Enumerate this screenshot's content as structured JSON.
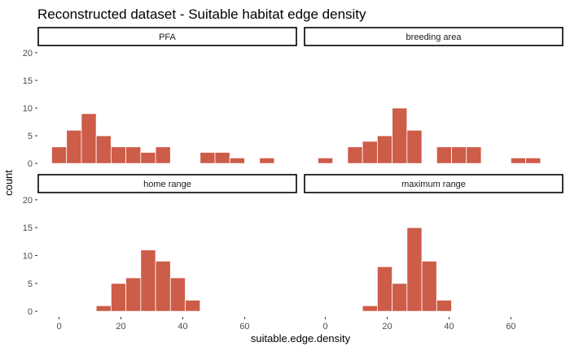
{
  "chart_data": {
    "type": "bar",
    "title": "Reconstructed dataset - Suitable habitat edge density",
    "xlabel": "suitable.edge.density",
    "ylabel": "count",
    "xlim": [
      -7,
      77
    ],
    "ylim": [
      -1,
      21
    ],
    "xticks": [
      0,
      20,
      40,
      60
    ],
    "yticks": [
      0,
      5,
      10,
      15,
      20
    ],
    "bin_width": 4.8,
    "bar_color": "#cd5c48",
    "panels": [
      {
        "label": "PFA",
        "bins": [
          {
            "x0": -2.4,
            "count": 3
          },
          {
            "x0": 2.4,
            "count": 6
          },
          {
            "x0": 7.2,
            "count": 9
          },
          {
            "x0": 12.0,
            "count": 5
          },
          {
            "x0": 16.8,
            "count": 3
          },
          {
            "x0": 21.6,
            "count": 3
          },
          {
            "x0": 26.4,
            "count": 2
          },
          {
            "x0": 31.2,
            "count": 3
          },
          {
            "x0": 45.6,
            "count": 2
          },
          {
            "x0": 50.4,
            "count": 2
          },
          {
            "x0": 55.2,
            "count": 1
          },
          {
            "x0": 64.8,
            "count": 1
          }
        ]
      },
      {
        "label": "breeding area",
        "bins": [
          {
            "x0": -2.4,
            "count": 1
          },
          {
            "x0": 7.2,
            "count": 3
          },
          {
            "x0": 12.0,
            "count": 4
          },
          {
            "x0": 16.8,
            "count": 5
          },
          {
            "x0": 21.6,
            "count": 10
          },
          {
            "x0": 26.4,
            "count": 6
          },
          {
            "x0": 36.0,
            "count": 3
          },
          {
            "x0": 40.8,
            "count": 3
          },
          {
            "x0": 45.6,
            "count": 3
          },
          {
            "x0": 60.0,
            "count": 1
          },
          {
            "x0": 64.8,
            "count": 1
          }
        ]
      },
      {
        "label": "home range",
        "bins": [
          {
            "x0": 12.0,
            "count": 1
          },
          {
            "x0": 16.8,
            "count": 5
          },
          {
            "x0": 21.6,
            "count": 6
          },
          {
            "x0": 26.4,
            "count": 11
          },
          {
            "x0": 31.2,
            "count": 9
          },
          {
            "x0": 36.0,
            "count": 6
          },
          {
            "x0": 40.8,
            "count": 2
          }
        ]
      },
      {
        "label": "maximum range",
        "bins": [
          {
            "x0": 12.0,
            "count": 1
          },
          {
            "x0": 16.8,
            "count": 8
          },
          {
            "x0": 21.6,
            "count": 5
          },
          {
            "x0": 26.4,
            "count": 15
          },
          {
            "x0": 31.2,
            "count": 9
          },
          {
            "x0": 36.0,
            "count": 2
          }
        ]
      }
    ]
  }
}
